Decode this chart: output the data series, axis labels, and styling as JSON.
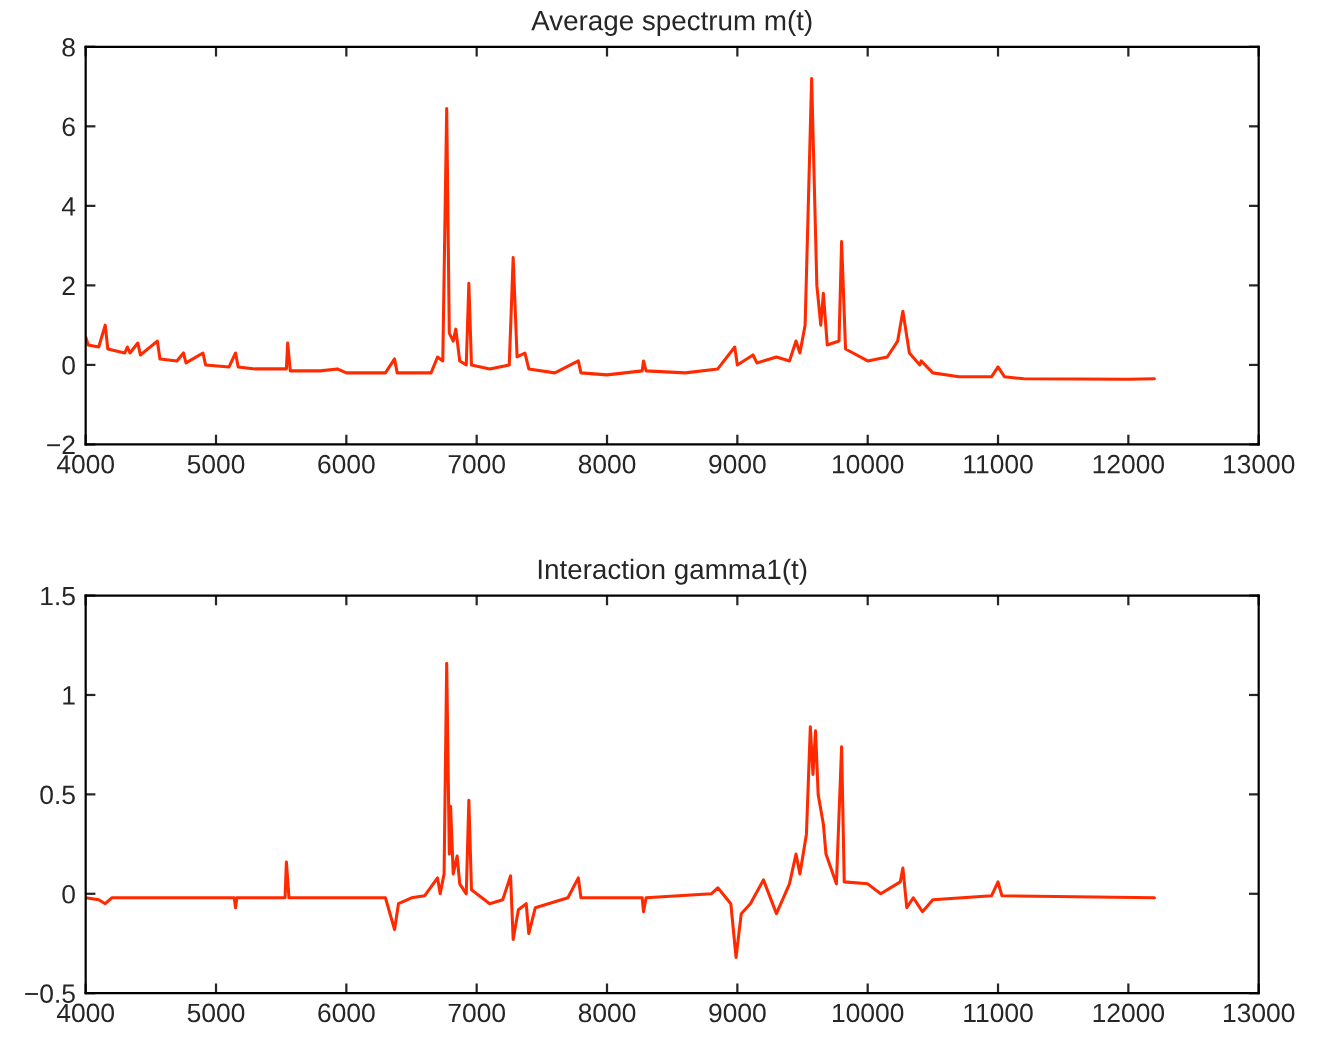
{
  "chart_data": [
    {
      "type": "line",
      "title": "Average spectrum m(t)",
      "xlim": [
        4000,
        13000
      ],
      "xticks": [
        4000,
        5000,
        6000,
        7000,
        8000,
        9000,
        10000,
        11000,
        12000,
        13000
      ],
      "ylim": [
        -2,
        8
      ],
      "yticks": [
        {
          "value": -2,
          "label": "−2"
        },
        0,
        2,
        4,
        6,
        8
      ],
      "grid": false,
      "marker": "none",
      "line_style": "solid",
      "series": [
        {
          "color": "#ff2a00",
          "x": [
            4000,
            4020,
            4100,
            4150,
            4170,
            4300,
            4320,
            4340,
            4400,
            4420,
            4550,
            4570,
            4700,
            4750,
            4770,
            4900,
            4920,
            5100,
            5150,
            5170,
            5300,
            5540,
            5550,
            5570,
            5800,
            5930,
            6000,
            6300,
            6370,
            6390,
            6650,
            6700,
            6740,
            6770,
            6790,
            6820,
            6840,
            6870,
            6920,
            6940,
            6960,
            7100,
            7250,
            7280,
            7310,
            7370,
            7400,
            7600,
            7780,
            7800,
            8000,
            8270,
            8280,
            8300,
            8600,
            8850,
            8980,
            9000,
            9120,
            9150,
            9300,
            9400,
            9450,
            9480,
            9520,
            9570,
            9610,
            9640,
            9660,
            9690,
            9780,
            9800,
            9830,
            10000,
            10150,
            10230,
            10270,
            10320,
            10400,
            10410,
            10500,
            10700,
            10950,
            11000,
            11050,
            11200,
            12000,
            12200
          ],
          "values": [
            0.7,
            0.5,
            0.45,
            1.0,
            0.4,
            0.3,
            0.45,
            0.3,
            0.55,
            0.25,
            0.6,
            0.15,
            0.1,
            0.3,
            0.05,
            0.3,
            0.0,
            -0.05,
            0.3,
            -0.05,
            -0.1,
            -0.1,
            0.55,
            -0.15,
            -0.15,
            -0.1,
            -0.2,
            -0.2,
            0.15,
            -0.2,
            -0.2,
            0.2,
            0.1,
            6.45,
            0.8,
            0.6,
            0.9,
            0.1,
            0.0,
            2.05,
            0.0,
            -0.1,
            0.0,
            2.7,
            0.2,
            0.3,
            -0.1,
            -0.2,
            0.1,
            -0.2,
            -0.25,
            -0.15,
            0.1,
            -0.15,
            -0.2,
            -0.1,
            0.45,
            0.0,
            0.25,
            0.05,
            0.2,
            0.1,
            0.6,
            0.3,
            1.0,
            7.2,
            2.0,
            1.0,
            1.8,
            0.5,
            0.6,
            3.1,
            0.4,
            0.1,
            0.2,
            0.6,
            1.35,
            0.3,
            0.0,
            0.1,
            -0.2,
            -0.3,
            -0.3,
            -0.05,
            -0.3,
            -0.35,
            -0.36,
            -0.35
          ]
        }
      ]
    },
    {
      "type": "line",
      "title": "Interaction gamma1(t)",
      "xlim": [
        4000,
        13000
      ],
      "xticks": [
        4000,
        5000,
        6000,
        7000,
        8000,
        9000,
        10000,
        11000,
        12000,
        13000
      ],
      "ylim": [
        -0.5,
        1.5
      ],
      "yticks": [
        {
          "value": -0.5,
          "label": "−0.5"
        },
        0,
        0.5,
        1,
        1.5
      ],
      "grid": false,
      "marker": "none",
      "line_style": "solid",
      "series": [
        {
          "color": "#ff2a00",
          "x": [
            4000,
            4100,
            4150,
            4200,
            5140,
            5150,
            5160,
            5530,
            5540,
            5560,
            6300,
            6370,
            6400,
            6500,
            6600,
            6700,
            6720,
            6750,
            6770,
            6790,
            6800,
            6820,
            6850,
            6870,
            6920,
            6940,
            6960,
            7100,
            7200,
            7260,
            7280,
            7320,
            7380,
            7400,
            7450,
            7700,
            7780,
            7800,
            8270,
            8280,
            8300,
            8800,
            8850,
            8950,
            8990,
            9030,
            9100,
            9200,
            9300,
            9400,
            9450,
            9480,
            9530,
            9560,
            9580,
            9600,
            9620,
            9660,
            9680,
            9760,
            9800,
            9820,
            10000,
            10100,
            10250,
            10270,
            10300,
            10350,
            10420,
            10500,
            10950,
            11000,
            11030,
            12200
          ],
          "values": [
            -0.02,
            -0.03,
            -0.05,
            -0.02,
            -0.02,
            -0.07,
            -0.02,
            -0.02,
            0.16,
            -0.02,
            -0.02,
            -0.18,
            -0.05,
            -0.02,
            -0.01,
            0.08,
            0.0,
            0.1,
            1.16,
            0.2,
            0.44,
            0.1,
            0.19,
            0.05,
            0.0,
            0.47,
            0.02,
            -0.05,
            -0.03,
            0.09,
            -0.23,
            -0.08,
            -0.05,
            -0.2,
            -0.07,
            -0.02,
            0.08,
            -0.02,
            -0.02,
            -0.09,
            -0.02,
            0.0,
            0.03,
            -0.05,
            -0.32,
            -0.1,
            -0.05,
            0.07,
            -0.1,
            0.05,
            0.2,
            0.1,
            0.3,
            0.84,
            0.6,
            0.82,
            0.5,
            0.35,
            0.2,
            0.05,
            0.74,
            0.06,
            0.05,
            0.0,
            0.06,
            0.13,
            -0.07,
            -0.02,
            -0.09,
            -0.03,
            -0.01,
            0.06,
            -0.01,
            -0.02
          ]
        }
      ]
    }
  ]
}
